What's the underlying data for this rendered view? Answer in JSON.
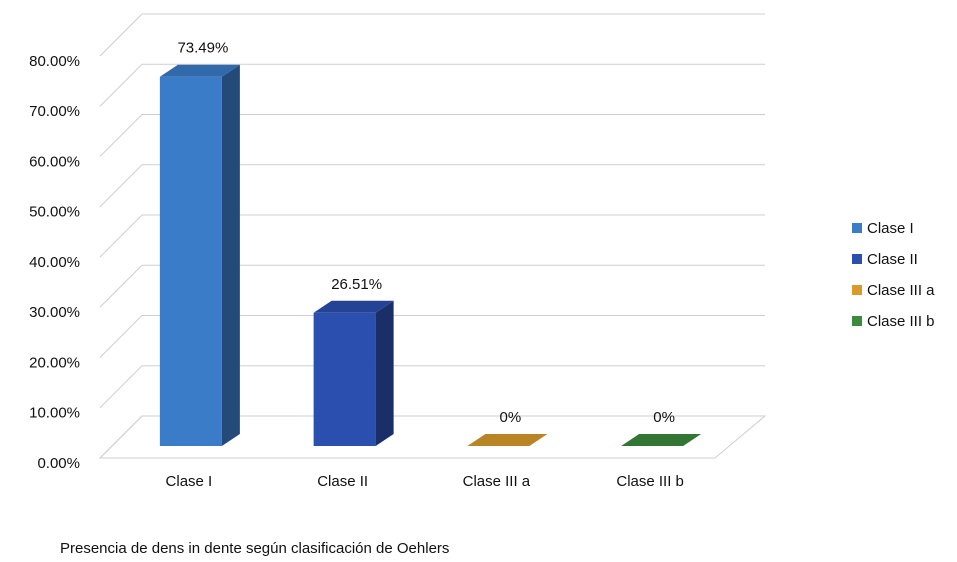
{
  "chart_data": {
    "type": "bar3d",
    "title": "Presencia de dens in dente según clasificación de Oehlers",
    "categories": [
      "Clase I",
      "Clase II",
      "Clase III a",
      "Clase III b"
    ],
    "values": [
      73.49,
      26.51,
      0,
      0
    ],
    "value_labels": [
      "73.49%",
      "26.51%",
      "0%",
      "0%"
    ],
    "colors": [
      "#3a7cc8",
      "#2b4fae",
      "#d89b2b",
      "#3c8a3c"
    ],
    "ylim": [
      0,
      80
    ],
    "yticks": [
      {
        "value": 0,
        "label": "0.00%"
      },
      {
        "value": 10,
        "label": "10.00%"
      },
      {
        "value": 20,
        "label": "20.00%"
      },
      {
        "value": 30,
        "label": "30.00%"
      },
      {
        "value": 40,
        "label": "40.00%"
      },
      {
        "value": 50,
        "label": "50.00%"
      },
      {
        "value": 60,
        "label": "60.00%"
      },
      {
        "value": 70,
        "label": "70.00%"
      },
      {
        "value": 80,
        "label": "80.00%"
      }
    ],
    "grid": true,
    "legend": "right"
  }
}
